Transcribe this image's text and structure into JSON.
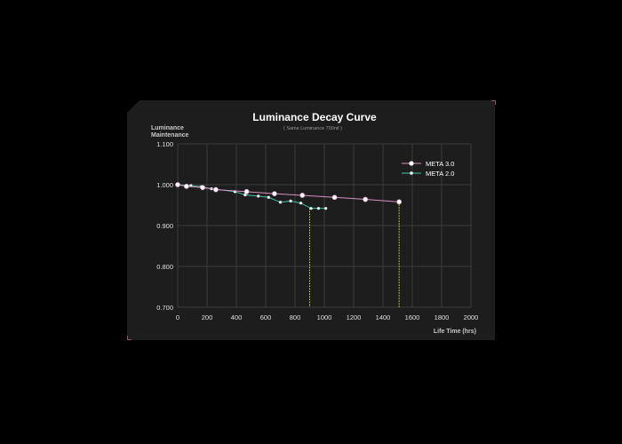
{
  "chart_data": {
    "type": "line",
    "title": "Luminance Decay Curve",
    "subtitle": "( Same Luminance 700nit )",
    "ylabel_line1": "Luminance",
    "ylabel_line2": "Maintenance",
    "xlabel": "Life Time (hrs)",
    "xlim": [
      0,
      2000
    ],
    "ylim": [
      0.7,
      1.1
    ],
    "xticks": [
      "0",
      "200",
      "400",
      "600",
      "800",
      "1000",
      "1200",
      "1400",
      "1600",
      "1800",
      "2000"
    ],
    "yticks": [
      "1.100",
      "1.000",
      "0.900",
      "0.800",
      "0.700"
    ],
    "grid": true,
    "legend_position": "top-right",
    "series": [
      {
        "name": "META 3.0",
        "color": "#d98fc0",
        "marker": "large-white-circle",
        "x": [
          0,
          60,
          170,
          260,
          470,
          660,
          850,
          1070,
          1280,
          1510
        ],
        "y": [
          1.0,
          0.996,
          0.993,
          0.988,
          0.983,
          0.978,
          0.974,
          0.969,
          0.964,
          0.958
        ]
      },
      {
        "name": "META 2.0",
        "color": "#34c9a6",
        "marker": "small-white-circle",
        "x": [
          0,
          90,
          160,
          230,
          390,
          460,
          550,
          620,
          700,
          770,
          840,
          910,
          960,
          1010
        ],
        "y": [
          1.0,
          0.998,
          0.995,
          0.99,
          0.983,
          0.975,
          0.972,
          0.969,
          0.957,
          0.96,
          0.955,
          0.942,
          0.942,
          0.942
        ]
      }
    ],
    "reference_lines": [
      {
        "x": 900,
        "y": 0.942,
        "color": "#e6e64a"
      },
      {
        "x": 1510,
        "y": 0.958,
        "color": "#e6e64a"
      }
    ]
  }
}
